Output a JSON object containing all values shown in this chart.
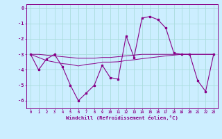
{
  "xlabel": "Windchill (Refroidissement éolien,°C)",
  "bg_color": "#cceeff",
  "grid_color": "#aadddd",
  "line_color": "#880088",
  "x_values": [
    0,
    1,
    2,
    3,
    4,
    5,
    6,
    7,
    8,
    9,
    10,
    11,
    12,
    13,
    14,
    15,
    16,
    17,
    18,
    19,
    20,
    21,
    22,
    23
  ],
  "windchill": [
    -3.0,
    -4.0,
    -3.3,
    -3.0,
    -3.8,
    -5.0,
    -6.0,
    -5.5,
    -5.0,
    -3.7,
    -4.5,
    -4.6,
    -1.8,
    -3.2,
    -0.65,
    -0.55,
    -0.75,
    -1.3,
    -2.9,
    -3.0,
    -3.0,
    -4.7,
    -5.4,
    -3.0
  ],
  "line2": [
    -3.0,
    -3.0,
    -3.05,
    -3.1,
    -3.15,
    -3.2,
    -3.25,
    -3.25,
    -3.25,
    -3.2,
    -3.2,
    -3.15,
    -3.1,
    -3.05,
    -3.0,
    -3.0,
    -3.0,
    -3.0,
    -3.0,
    -3.0,
    -3.0,
    -3.0,
    -3.0,
    -3.0
  ],
  "line3": [
    -3.0,
    -3.2,
    -3.4,
    -3.5,
    -3.6,
    -3.65,
    -3.75,
    -3.65,
    -3.6,
    -3.5,
    -3.5,
    -3.48,
    -3.4,
    -3.35,
    -3.28,
    -3.22,
    -3.16,
    -3.1,
    -3.05,
    -3.0,
    -3.0,
    -3.0,
    -3.0,
    -3.0
  ],
  "ylim_min": -6.5,
  "ylim_max": 0.25,
  "yticks": [
    0,
    -1,
    -2,
    -3,
    -4,
    -5,
    -6
  ]
}
